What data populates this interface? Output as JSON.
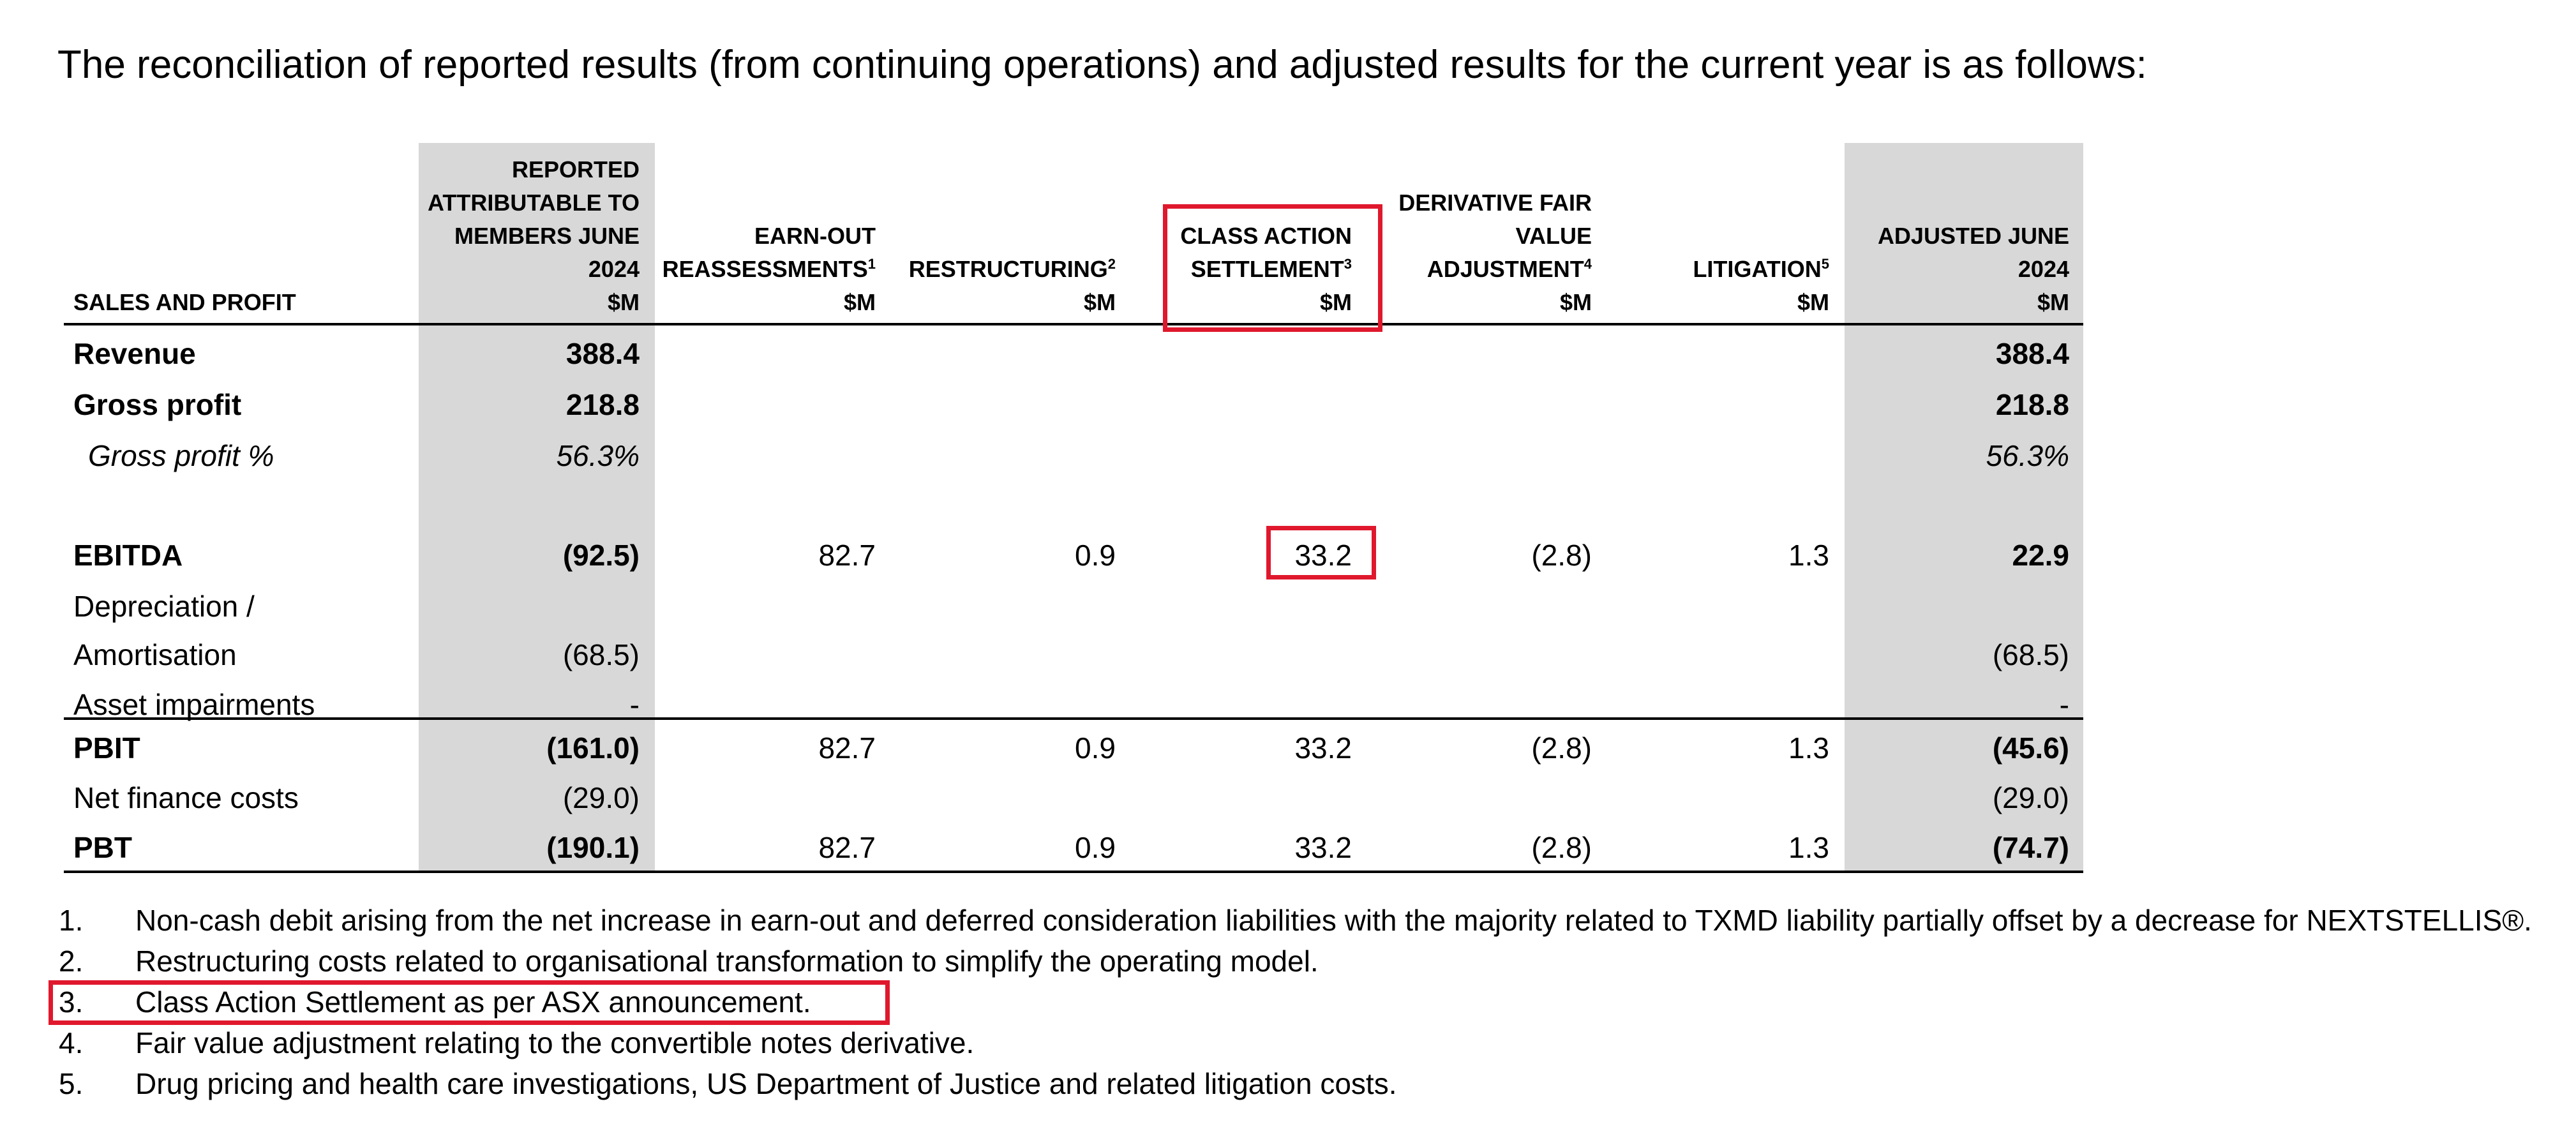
{
  "intro": "The reconciliation of reported results (from continuing operations) and adjusted results for the current year is as follows:",
  "columns": [
    {
      "lines": [
        "SALES AND PROFIT"
      ],
      "sup": ""
    },
    {
      "lines": [
        "REPORTED",
        "ATTRIBUTABLE TO",
        "MEMBERS JUNE",
        "2024",
        "$M"
      ],
      "sup": ""
    },
    {
      "lines": [
        "EARN-OUT",
        "REASSESSMENTS",
        "$M"
      ],
      "sup": "1"
    },
    {
      "lines": [
        "RESTRUCTURING",
        "$M"
      ],
      "sup": "2"
    },
    {
      "lines": [
        "CLASS ACTION",
        "SETTLEMENT",
        "$M"
      ],
      "sup": "3"
    },
    {
      "lines": [
        "DERIVATIVE FAIR",
        "VALUE",
        "ADJUSTMENT",
        "$M"
      ],
      "sup": "4"
    },
    {
      "lines": [
        "LITIGATION",
        "$M"
      ],
      "sup": "5"
    },
    {
      "lines": [
        "ADJUSTED JUNE",
        "2024",
        "$M"
      ],
      "sup": ""
    }
  ],
  "rows": [
    {
      "label": "Revenue",
      "style": "bold",
      "values": [
        "388.4",
        "",
        "",
        "",
        "",
        "",
        "388.4"
      ]
    },
    {
      "label": "Gross profit",
      "style": "bold",
      "values": [
        "218.8",
        "",
        "",
        "",
        "",
        "",
        "218.8"
      ]
    },
    {
      "label": "Gross profit %",
      "style": "ital",
      "values": [
        "56.3%",
        "",
        "",
        "",
        "",
        "",
        "56.3%"
      ]
    },
    {
      "label": "EBITDA",
      "style": "bold",
      "values": [
        "(92.5)",
        "82.7",
        "0.9",
        "33.2",
        "(2.8)",
        "1.3",
        "22.9"
      ]
    },
    {
      "label": "Depreciation /",
      "style": "plain",
      "values": [
        "",
        "",
        "",
        "",
        "",
        "",
        ""
      ]
    },
    {
      "label": "Amortisation",
      "style": "plain",
      "values": [
        "(68.5)",
        "",
        "",
        "",
        "",
        "",
        "(68.5)"
      ]
    },
    {
      "label": "Asset impairments",
      "style": "plain",
      "values": [
        "-",
        "",
        "",
        "",
        "",
        "",
        "-"
      ]
    },
    {
      "label": "PBIT",
      "style": "bold",
      "values": [
        "(161.0)",
        "82.7",
        "0.9",
        "33.2",
        "(2.8)",
        "1.3",
        "(45.6)"
      ]
    },
    {
      "label": "Net finance costs",
      "style": "plain",
      "values": [
        "(29.0)",
        "",
        "",
        "",
        "",
        "",
        "(29.0)"
      ]
    },
    {
      "label": "PBT",
      "style": "bold",
      "values": [
        "(190.1)",
        "82.7",
        "0.9",
        "33.2",
        "(2.8)",
        "1.3",
        "(74.7)"
      ]
    }
  ],
  "footnotes": [
    {
      "num": "1.",
      "text": "Non-cash debit arising from the net increase in earn-out and deferred consideration liabilities with the majority related to TXMD liability partially offset by a decrease for NEXTSTELLIS®."
    },
    {
      "num": "2.",
      "text": "Restructuring costs related to organisational transformation to simplify the operating model."
    },
    {
      "num": "3.",
      "text": "Class Action Settlement as per ASX announcement."
    },
    {
      "num": "4.",
      "text": "Fair value adjustment relating to the convertible notes derivative."
    },
    {
      "num": "5.",
      "text": "Drug pricing and health care investigations, US Department of Justice and related litigation costs."
    }
  ],
  "colors": {
    "shade": "#d8d8d8",
    "highlight": "#e0182d",
    "text": "#000000"
  }
}
